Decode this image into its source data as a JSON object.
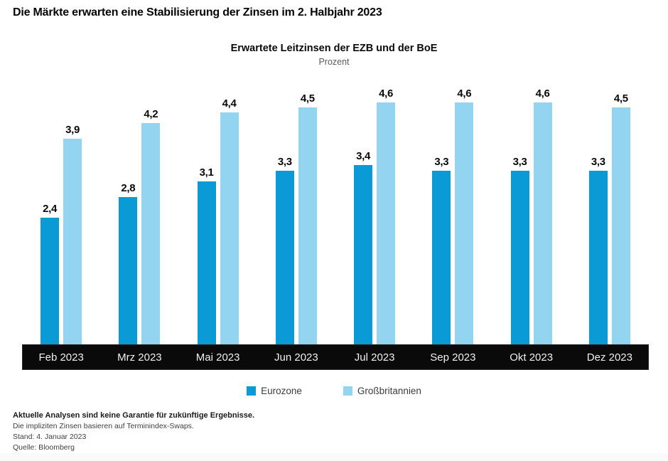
{
  "page": {
    "title": "Die Märkte erwarten eine Stabilisierung der Zinsen im 2. Halbjahr 2023"
  },
  "chart_data": {
    "type": "bar",
    "title": "Erwartete Leitzinsen der EZB und der BoE",
    "subtitle": "Prozent",
    "categories": [
      "Feb 2023",
      "Mrz 2023",
      "Mai 2023",
      "Jun 2023",
      "Jul 2023",
      "Sep 2023",
      "Okt 2023",
      "Dez 2023"
    ],
    "series": [
      {
        "name": "Eurozone",
        "color": "#0a9ad6",
        "values": [
          2.4,
          2.8,
          3.1,
          3.3,
          3.4,
          3.3,
          3.3,
          3.3
        ]
      },
      {
        "name": "Großbritannien",
        "color": "#93d4f0",
        "values": [
          3.9,
          4.2,
          4.4,
          4.5,
          4.6,
          4.6,
          4.6,
          4.5
        ]
      }
    ],
    "ylim": [
      0,
      4.8
    ],
    "grid": false,
    "legend_position": "bottom",
    "value_labels": "above-bars, decimal comma, one decimal",
    "axis_band_color": "#0a0a0a",
    "axis_text_color": "#efefef"
  },
  "footnotes": {
    "disclaimer": "Aktuelle Analysen sind keine Garantie für zukünftige Ergebnisse.",
    "method": "Die impliziten Zinsen basieren auf Terminindex-Swaps.",
    "as_of": "Stand: 4. Januar 2023",
    "source": "Quelle: Bloomberg"
  }
}
